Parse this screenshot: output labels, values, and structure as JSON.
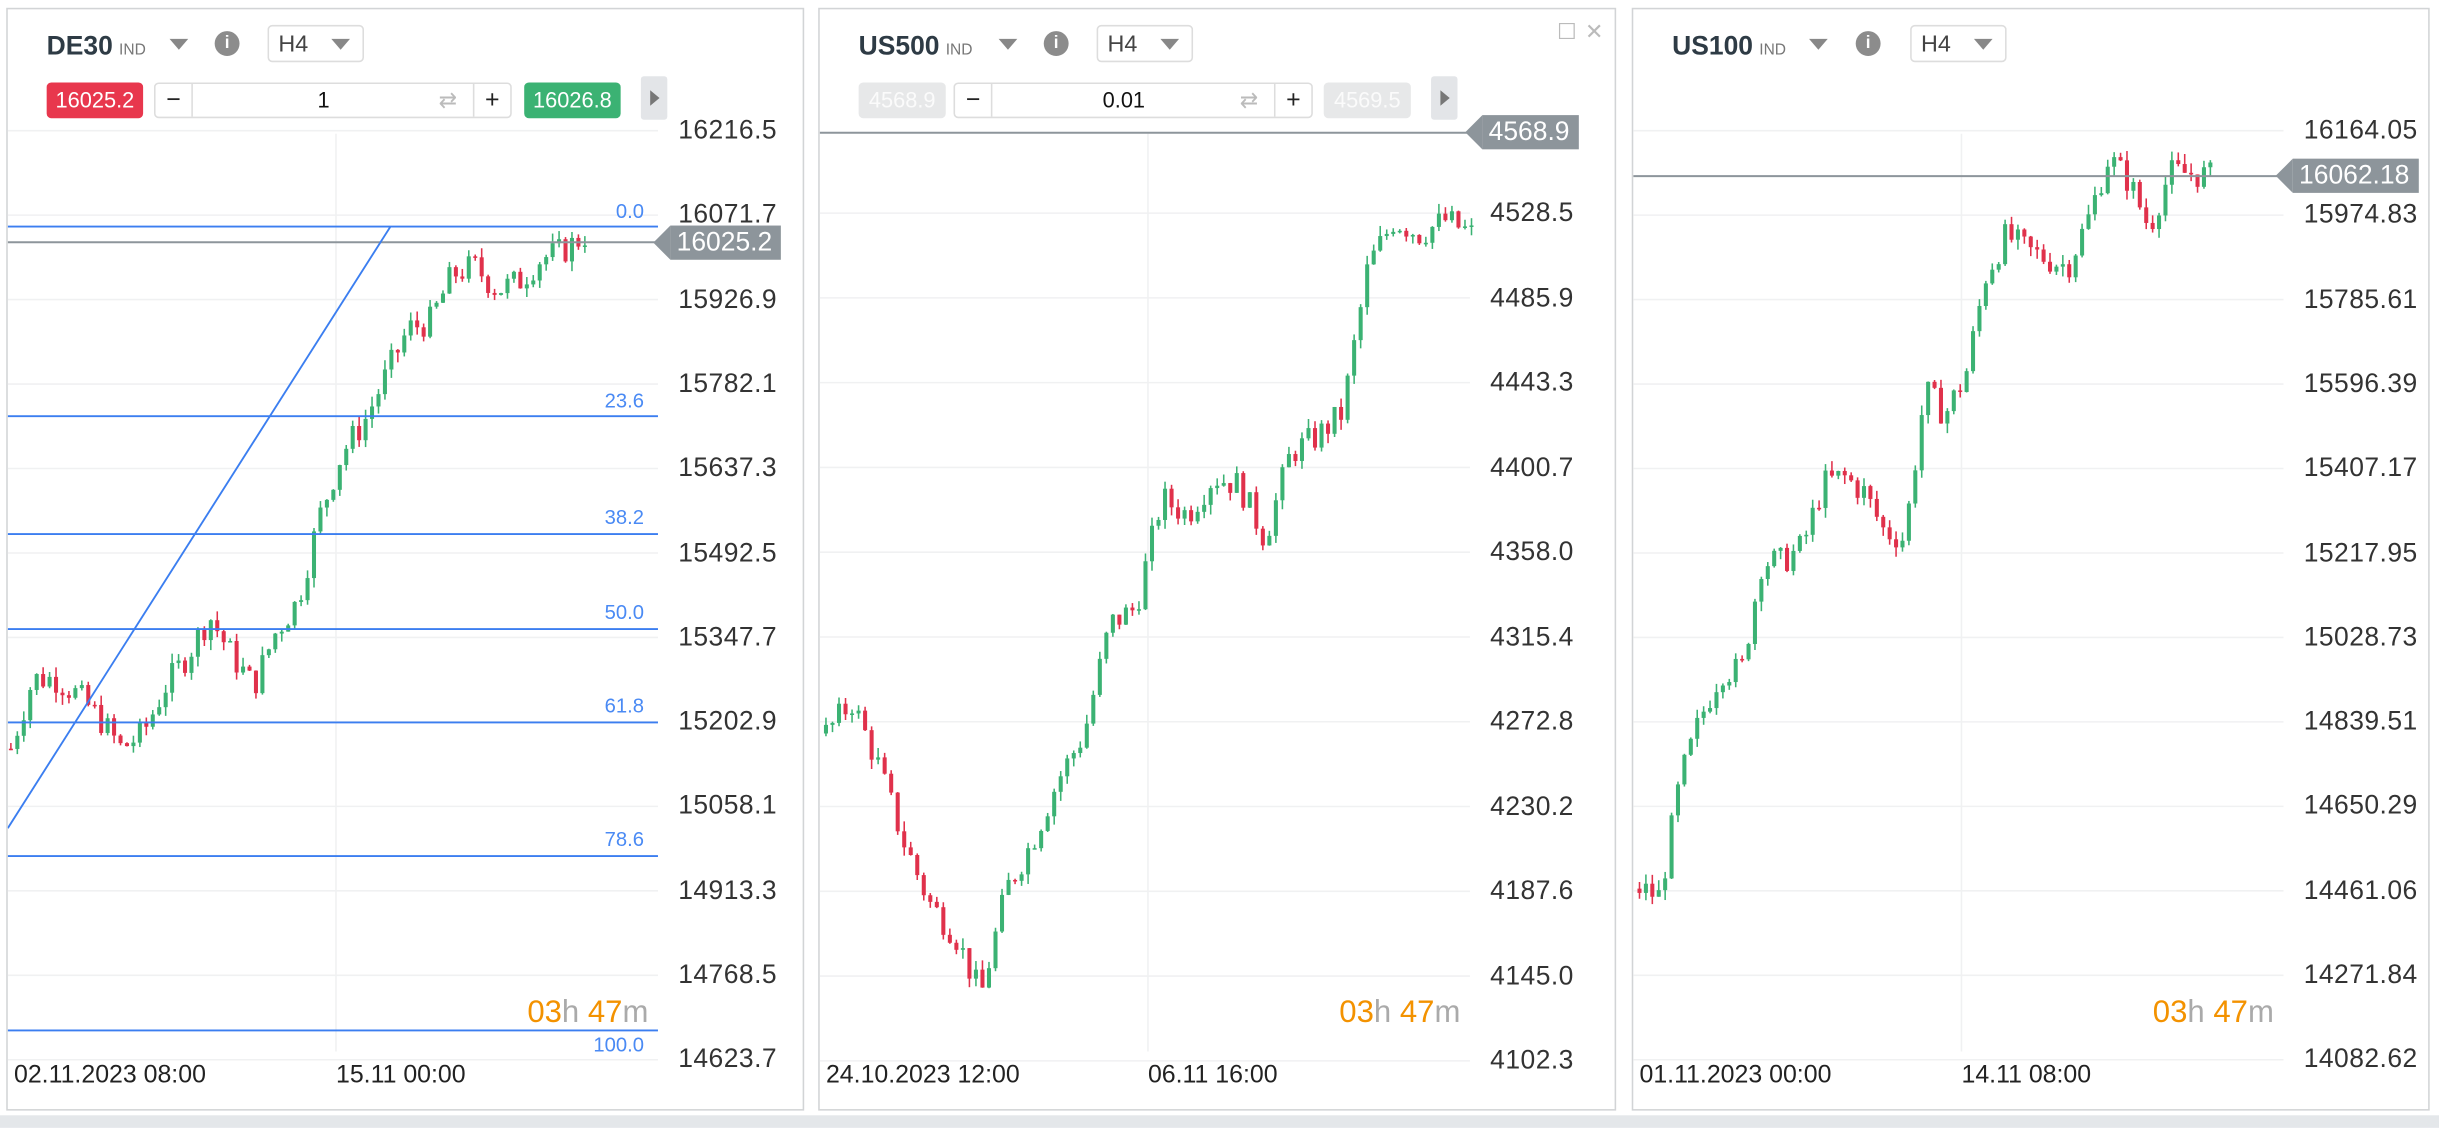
{
  "colors": {
    "up": "#3bb273",
    "down": "#e0314b",
    "fib": "#3b7ef0",
    "price_line": "#8d959b",
    "timer": "#f39200"
  },
  "timer": {
    "hours": "03",
    "h": "h",
    "minutes": "47",
    "m": "m"
  },
  "charts": [
    {
      "symbol": "DE30",
      "type": "IND",
      "timeframe": "H4",
      "sell": "16025.2",
      "buy": "16026.8",
      "quantity": "1",
      "minus": "−",
      "plus": "+",
      "swap": "⇄",
      "current_price": "16025.2",
      "current_value": 16025.2,
      "ticks": [
        "16216.5",
        "16071.7",
        "15926.9",
        "15782.1",
        "15637.3",
        "15492.5",
        "15347.7",
        "15202.9",
        "15058.1",
        "14913.3",
        "14768.5",
        "14623.7"
      ],
      "dates": [
        "02.11.2023 08:00",
        "15.11 00:00"
      ],
      "fib_levels": [
        {
          "label": "0.0",
          "price": 16052
        },
        {
          "label": "23.6",
          "price": 15727
        },
        {
          "label": "38.2",
          "price": 15525
        },
        {
          "label": "50.0",
          "price": 15362
        },
        {
          "label": "61.8",
          "price": 15202
        },
        {
          "label": "78.6",
          "price": 14973
        },
        {
          "label": "100.0",
          "price": 14674
        }
      ],
      "candle_count": 90,
      "price_path": [
        15157,
        15277,
        15277,
        15250,
        15210,
        15157,
        15184,
        15264,
        15317,
        15384,
        15317,
        15264,
        15357,
        15410,
        15557,
        15664,
        15717,
        15797,
        15877,
        15890,
        15970,
        15984,
        15944,
        15957,
        15997,
        16010,
        16037
      ]
    },
    {
      "symbol": "US500",
      "type": "IND",
      "timeframe": "H4",
      "sell": "4568.9",
      "buy": "4569.5",
      "quantity": "0.01",
      "minus": "−",
      "plus": "+",
      "swap": "⇄",
      "current_price": "4568.9",
      "current_value": 4568.9,
      "ticks": [
        "4528.5",
        "4485.9",
        "4443.3",
        "4400.7",
        "4358.0",
        "4315.4",
        "4272.8",
        "4230.2",
        "4187.6",
        "4145.0",
        "4102.3"
      ],
      "dates": [
        "24.10.2023 12:00",
        "06.11 16:00"
      ],
      "window_buttons": {
        "maximize": "☐",
        "close": "✕"
      },
      "candle_count": 100,
      "price_path": [
        4267,
        4283,
        4252,
        4213,
        4182,
        4166,
        4135,
        4189,
        4213,
        4244,
        4267,
        4322,
        4330,
        4385,
        4377,
        4396,
        4392,
        4365,
        4408,
        4416,
        4428,
        4502,
        4525,
        4518,
        4525,
        4518
      ]
    },
    {
      "symbol": "US100",
      "type": "IND",
      "timeframe": "H4",
      "current_price": "16062.18",
      "current_value": 16062.18,
      "ticks": [
        "16164.05",
        "15974.83",
        "15785.61",
        "15596.39",
        "15407.17",
        "15217.95",
        "15028.73",
        "14839.51",
        "14650.29",
        "14461.06",
        "14271.84",
        "14082.62"
      ],
      "dates": [
        "01.11.2023 00:00",
        "14.11 08:00"
      ],
      "candle_count": 90,
      "price_path": [
        14466,
        14448,
        14710,
        14849,
        14954,
        14954,
        15198,
        15198,
        15233,
        15372,
        15389,
        15355,
        15267,
        15250,
        15581,
        15529,
        15616,
        15842,
        15930,
        15895,
        15877,
        15860,
        15964,
        16104,
        16051,
        15947,
        16069,
        16069,
        16062
      ]
    }
  ]
}
